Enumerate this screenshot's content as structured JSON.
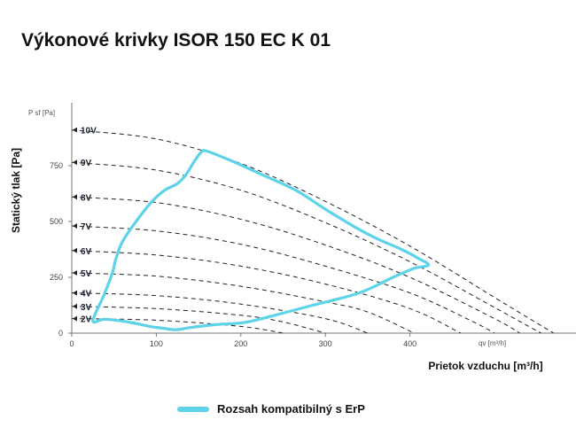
{
  "title": "Výkonové krivky ISOR 150 EC K 01",
  "chart_data": {
    "type": "line",
    "title": "Výkonové krivky ISOR 150 EC K 01",
    "xlabel": "Prietok vzduchu [m³/h]",
    "ylabel": "Statický tlak [Pa]",
    "x_axis_unit": "qv [m³/h]",
    "y_axis_unit": "P sf [Pa]",
    "xlim": [
      0,
      600
    ],
    "ylim": [
      0,
      1000
    ],
    "x_ticks": [
      0,
      100,
      200,
      300,
      400
    ],
    "y_ticks": [
      0,
      250,
      500,
      750
    ],
    "grid": false,
    "legend_position": "bottom",
    "curve_color": "#222222",
    "erp_color": "#5dd3ea",
    "curves": [
      {
        "label": "10V",
        "x": [
          0,
          100,
          200,
          300,
          400,
          500,
          570
        ],
        "y": [
          910,
          870,
          760,
          590,
          390,
          160,
          0
        ]
      },
      {
        "label": "9V",
        "x": [
          0,
          100,
          200,
          300,
          400,
          500,
          555
        ],
        "y": [
          765,
          730,
          640,
          495,
          320,
          115,
          0
        ]
      },
      {
        "label": "8V",
        "x": [
          0,
          100,
          200,
          300,
          400,
          500,
          530
        ],
        "y": [
          610,
          585,
          510,
          395,
          250,
          65,
          0
        ]
      },
      {
        "label": "7V",
        "x": [
          0,
          100,
          200,
          300,
          400,
          470,
          500
        ],
        "y": [
          480,
          458,
          398,
          300,
          180,
          60,
          0
        ]
      },
      {
        "label": "6V",
        "x": [
          0,
          100,
          200,
          300,
          400,
          460
        ],
        "y": [
          370,
          350,
          300,
          220,
          110,
          0
        ]
      },
      {
        "label": "5V",
        "x": [
          0,
          100,
          200,
          300,
          350,
          405
        ],
        "y": [
          270,
          255,
          210,
          140,
          95,
          0
        ]
      },
      {
        "label": "4V",
        "x": [
          0,
          100,
          200,
          300,
          350
        ],
        "y": [
          180,
          168,
          130,
          65,
          0
        ]
      },
      {
        "label": "3V",
        "x": [
          0,
          100,
          200,
          250,
          300
        ],
        "y": [
          120,
          110,
          80,
          50,
          0
        ]
      },
      {
        "label": "2V",
        "x": [
          0,
          100,
          200,
          250
        ],
        "y": [
          65,
          58,
          30,
          0
        ]
      }
    ],
    "erp_range": {
      "name": "Rozsah kompatibilný s ErP",
      "x": [
        25,
        38,
        48,
        52,
        60,
        78,
        95,
        110,
        125,
        135,
        145,
        153,
        160,
        190,
        225,
        265,
        300,
        335,
        360,
        390,
        410,
        422,
        405,
        380,
        340,
        285,
        240,
        205,
        170,
        140,
        123,
        108,
        92,
        80,
        58,
        38,
        25
      ],
      "y": [
        55,
        170,
        270,
        330,
        410,
        510,
        590,
        640,
        670,
        710,
        770,
        810,
        815,
        770,
        710,
        640,
        555,
        475,
        425,
        375,
        335,
        305,
        290,
        250,
        180,
        125,
        80,
        48,
        38,
        25,
        15,
        22,
        30,
        40,
        55,
        62,
        55
      ]
    }
  }
}
